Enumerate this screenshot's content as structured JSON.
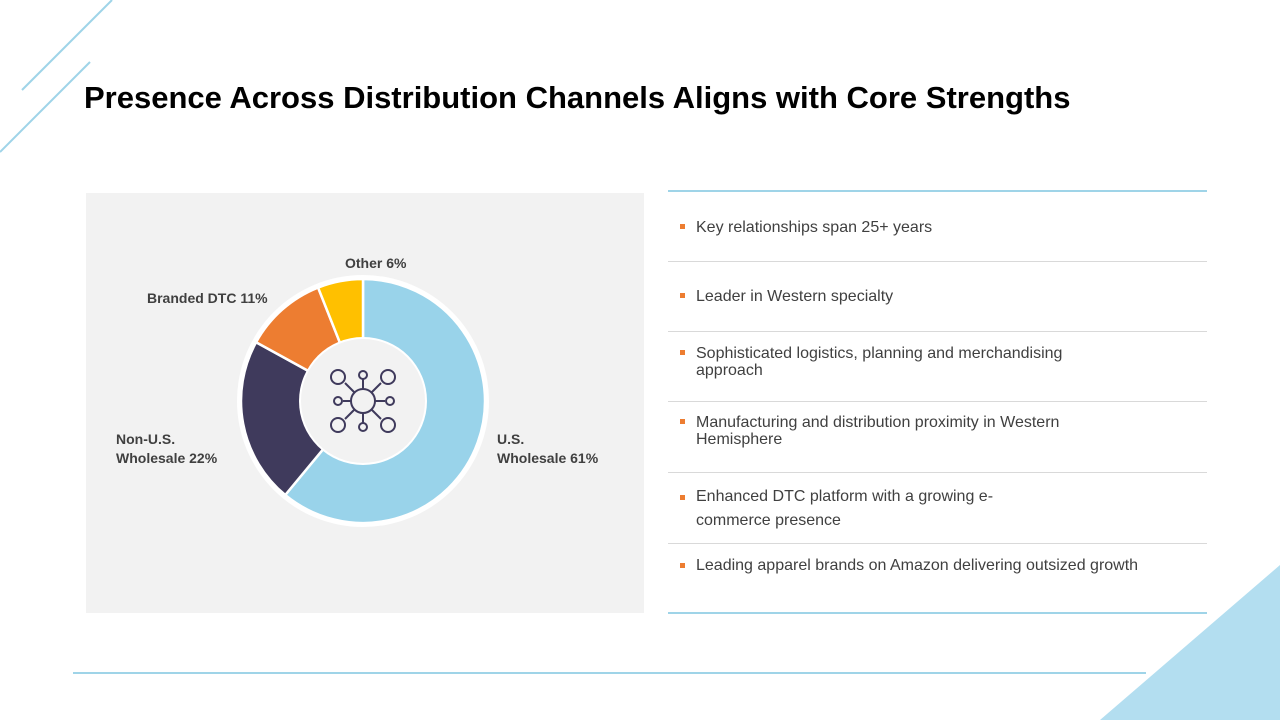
{
  "title": "Presence Across Distribution Channels Aligns with Core Strengths",
  "colors": {
    "us_wholesale": "#99d3ea",
    "non_us_wholesale": "#3f3a5c",
    "branded_dtc": "#ed7d31",
    "other": "#ffc000",
    "accent_line": "#9fd4e8",
    "bullet_marker": "#ed7d31",
    "chart_background": "#f2f2f2"
  },
  "chart_data": {
    "type": "pie",
    "donut": true,
    "center_icon": "network-hub-icon",
    "slices": [
      {
        "label": "U.S. Wholesale",
        "value": 61,
        "display_line1": "U.S.",
        "display_line2": "Wholesale 61%"
      },
      {
        "label": "Non-U.S. Wholesale",
        "value": 22,
        "display_line1": "Non-U.S.",
        "display_line2": "Wholesale  22%"
      },
      {
        "label": "Branded DTC",
        "value": 11,
        "display_line1": "Branded DTC 11%",
        "display_line2": ""
      },
      {
        "label": "Other",
        "value": 6,
        "display_line1": "Other 6%",
        "display_line2": ""
      }
    ]
  },
  "bullets": [
    "Key relationships span 25+ years",
    "Leader in Western specialty",
    "Sophisticated logistics, planning and merchandising approach",
    "Manufacturing and distribution proximity in Western Hemisphere",
    "Enhanced DTC platform with a growing e-commerce presence",
    "Leading apparel brands on Amazon delivering outsized growth"
  ]
}
